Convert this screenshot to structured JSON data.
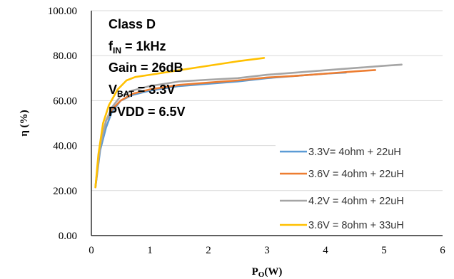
{
  "chart_data": {
    "type": "line",
    "title": "",
    "xlabel": "P",
    "xlabel_sub": "O",
    "xlabel_unit": "(W)",
    "ylabel": "η (%)",
    "xlim": [
      0,
      6
    ],
    "ylim": [
      0,
      100
    ],
    "x_ticks": [
      "0",
      "1",
      "2",
      "3",
      "4",
      "5",
      "6"
    ],
    "y_ticks": [
      "0.00",
      "20.00",
      "40.00",
      "60.00",
      "80.00",
      "100.00"
    ],
    "grid": true,
    "legend_position": "right",
    "annotations": {
      "line1": "Class D",
      "line2_main": "f",
      "line2_sub": "IN",
      "line2_rest": " = 1kHz",
      "line3": "Gain = 26dB",
      "line4_main": "V",
      "line4_sub": "BAT",
      "line4_rest": " = 3.3V",
      "line5": "PVDD = 6.5V"
    },
    "series": [
      {
        "name": "3.3V= 4ohm + 22uH",
        "color": "#5B9BD5",
        "x": [
          0.07,
          0.15,
          0.25,
          0.35,
          0.5,
          0.7,
          1.0,
          1.5,
          2.0,
          2.5,
          3.0,
          3.5,
          4.0,
          4.35
        ],
        "y": [
          21.5,
          38,
          48,
          55,
          60,
          62.5,
          64.5,
          66.5,
          67.5,
          68.5,
          70,
          71,
          72,
          72.5
        ]
      },
      {
        "name": "3.6V = 4ohm + 22uH",
        "color": "#ED7D31",
        "x": [
          0.07,
          0.15,
          0.25,
          0.35,
          0.5,
          0.7,
          1.0,
          1.5,
          2.0,
          2.5,
          3.0,
          3.5,
          4.0,
          4.5,
          4.85
        ],
        "y": [
          21.5,
          40,
          51,
          56,
          60,
          63,
          65,
          67,
          68,
          69,
          70.3,
          71,
          72,
          73,
          73.6
        ]
      },
      {
        "name": "4.2V = 4ohm + 22uH",
        "color": "#A5A5A5",
        "x": [
          0.07,
          0.15,
          0.25,
          0.35,
          0.5,
          0.7,
          1.0,
          1.5,
          2.0,
          2.5,
          3.0,
          3.5,
          4.0,
          4.5,
          5.0,
          5.3
        ],
        "y": [
          22,
          40,
          51,
          57,
          62,
          64.5,
          66.5,
          68.5,
          69.3,
          70,
          71.5,
          72.5,
          73.5,
          74.5,
          75.5,
          76
        ]
      },
      {
        "name": "3.6V = 8ohm + 33uH",
        "color": "#FFC000",
        "x": [
          0.07,
          0.12,
          0.2,
          0.3,
          0.45,
          0.6,
          0.75,
          1.0,
          1.5,
          2.0,
          2.5,
          2.95
        ],
        "y": [
          21.5,
          36,
          50,
          58,
          65,
          69,
          70.5,
          71.5,
          73.5,
          75.5,
          77.5,
          79
        ]
      }
    ]
  }
}
